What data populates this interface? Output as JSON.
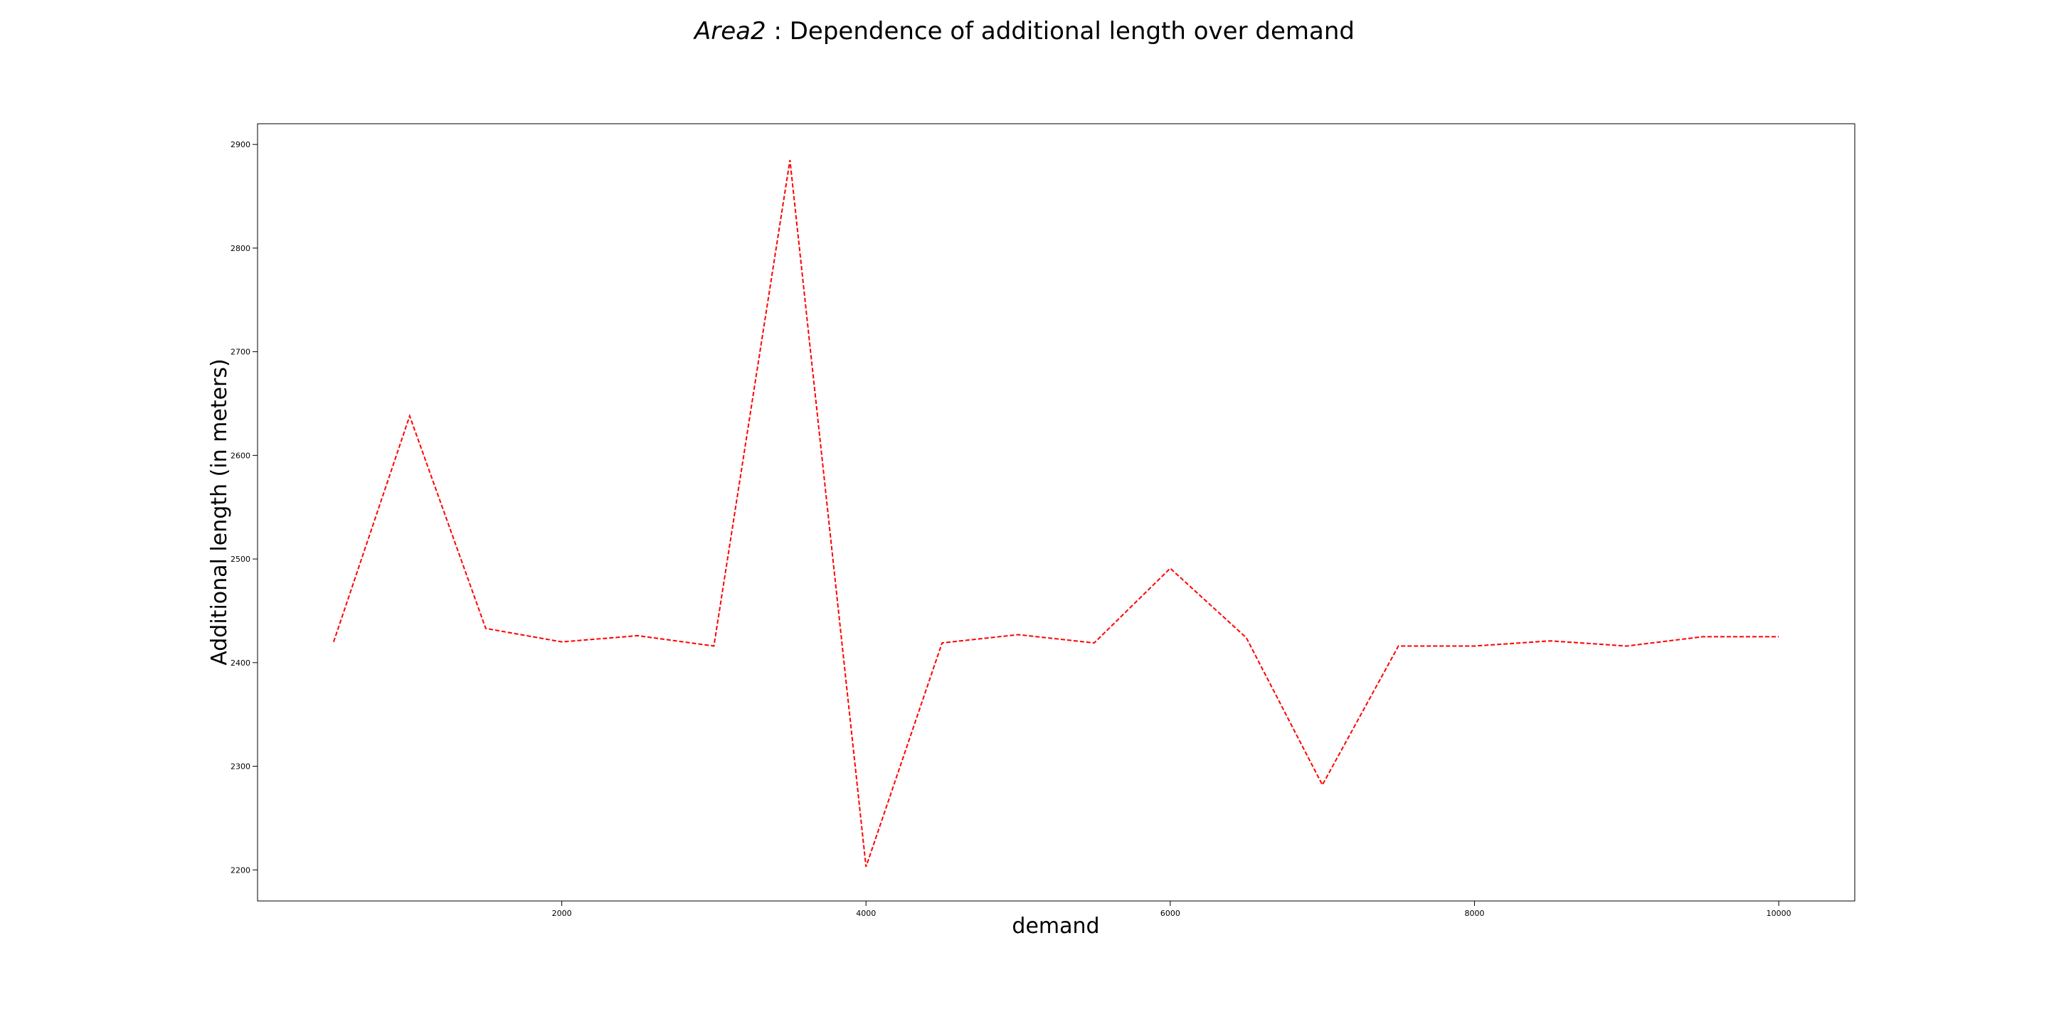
{
  "chart_data": {
    "type": "line",
    "title": {
      "math": "Area2",
      "separator": " : ",
      "text": "Dependence of additional length over demand"
    },
    "xlabel": "demand",
    "ylabel": "Additional length (in meters)",
    "xlim": [
      0,
      10500
    ],
    "ylim": [
      2170,
      2920
    ],
    "xticks": [
      2000,
      4000,
      6000,
      8000,
      10000
    ],
    "yticks": [
      2200,
      2300,
      2400,
      2500,
      2600,
      2700,
      2800,
      2900
    ],
    "grid": false,
    "legend": "none",
    "series": [
      {
        "color": "#ff0000",
        "line_style": "dashed",
        "x": [
          500,
          1000,
          1500,
          2000,
          2500,
          3000,
          3500,
          4000,
          4500,
          5000,
          5500,
          6000,
          6500,
          7000,
          7500,
          8000,
          8500,
          9000,
          9500,
          10000
        ],
        "y": [
          2420,
          2638,
          2433,
          2420,
          2426,
          2416,
          2885,
          2203,
          2419,
          2427,
          2419,
          2491,
          2424,
          2282,
          2416,
          2416,
          2421,
          2416,
          2425,
          2425
        ]
      }
    ]
  }
}
